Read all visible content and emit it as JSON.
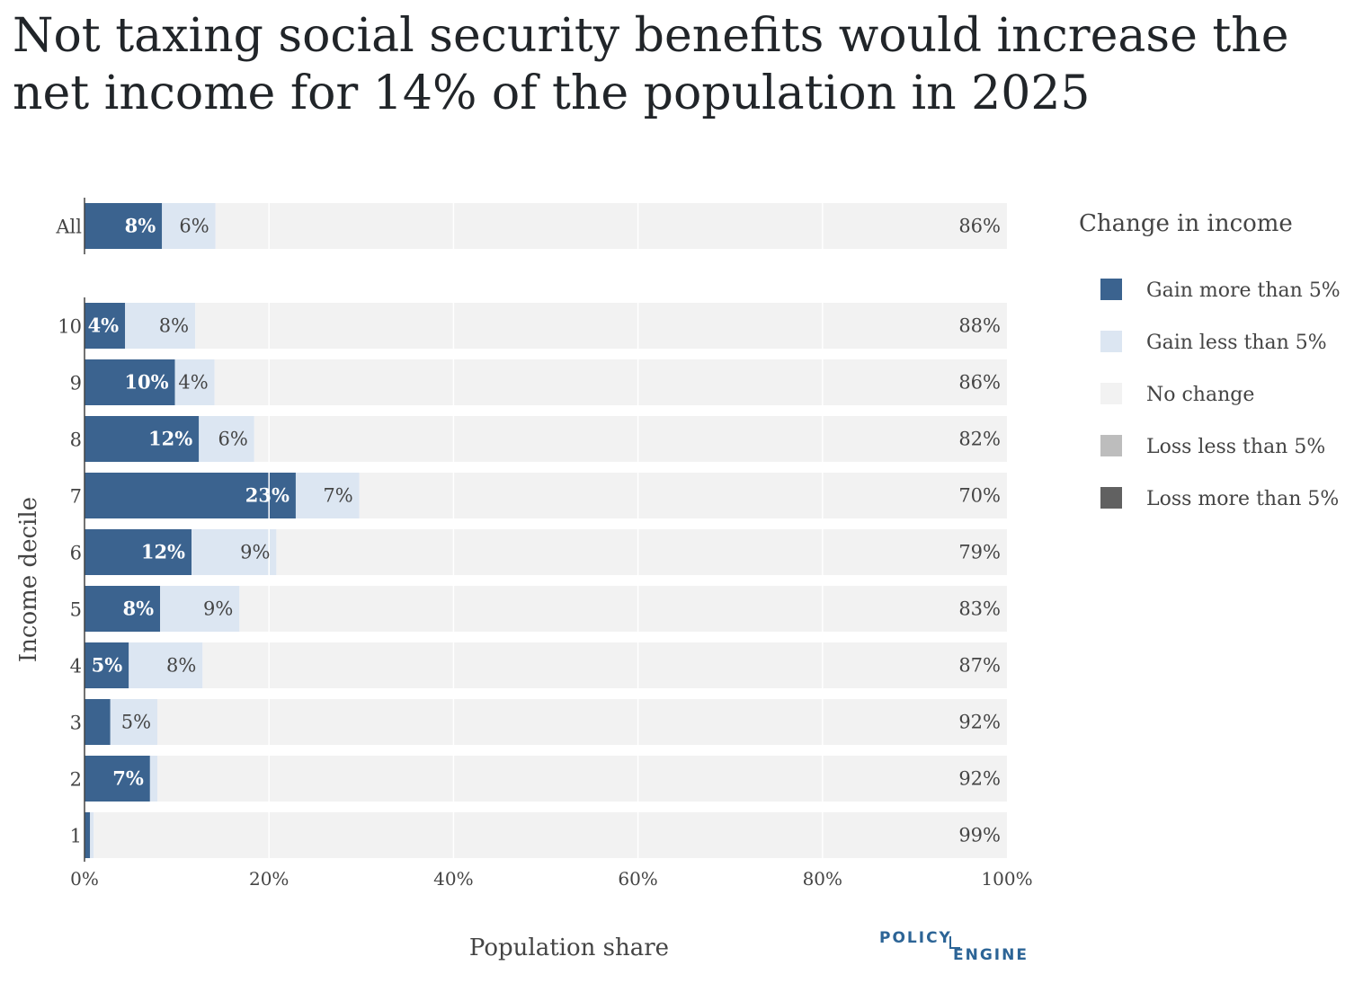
{
  "title": "Not taxing social security benefits would increase the net income for 14% of the population in 2025",
  "logo": {
    "top": "POLICY",
    "bottom": "ENGINE"
  },
  "chart_data": {
    "type": "bar",
    "orientation": "horizontal",
    "stacked": true,
    "categories_all": [
      "All"
    ],
    "categories": [
      "10",
      "9",
      "8",
      "7",
      "6",
      "5",
      "4",
      "3",
      "2",
      "1"
    ],
    "xlabel": "Population share",
    "ylabel": "Income decile",
    "xlim": [
      0,
      100
    ],
    "xticks": [
      "0%",
      "20%",
      "40%",
      "60%",
      "80%",
      "100%"
    ],
    "legend_title": "Change in income",
    "legend_position": "right",
    "series": [
      {
        "name": "Gain more than 5%",
        "color": "#3b638f",
        "all": 8.4,
        "values": [
          4.4,
          9.8,
          12.4,
          22.9,
          11.6,
          8.2,
          4.8,
          2.8,
          7.1,
          0.6
        ],
        "all_label": "8%",
        "labels": [
          "4%",
          "10%",
          "12%",
          "23%",
          "12%",
          "8%",
          "5%",
          "",
          "7%",
          ""
        ]
      },
      {
        "name": "Gain less than 5%",
        "color": "#dce6f2",
        "all": 5.8,
        "values": [
          7.6,
          4.3,
          6.0,
          6.9,
          9.2,
          8.6,
          8.0,
          5.1,
          0.8,
          0.4
        ],
        "all_label": "6%",
        "labels": [
          "8%",
          "4%",
          "6%",
          "7%",
          "9%",
          "9%",
          "8%",
          "5%",
          "",
          ""
        ]
      },
      {
        "name": "No change",
        "color": "#f2f2f2",
        "all": 85.8,
        "values": [
          88.0,
          85.9,
          81.6,
          70.2,
          79.2,
          83.2,
          87.2,
          92.1,
          92.1,
          99.0
        ],
        "all_label": "86%",
        "labels": [
          "88%",
          "86%",
          "82%",
          "70%",
          "79%",
          "83%",
          "87%",
          "92%",
          "92%",
          "99%"
        ]
      },
      {
        "name": "Loss less than 5%",
        "color": "#bdbdbd",
        "all": 0,
        "values": [
          0,
          0,
          0,
          0,
          0,
          0,
          0,
          0,
          0,
          0
        ],
        "all_label": "",
        "labels": [
          "",
          "",
          "",
          "",
          "",
          "",
          "",
          "",
          "",
          ""
        ]
      },
      {
        "name": "Loss more than 5%",
        "color": "#616161",
        "all": 0,
        "values": [
          0,
          0,
          0,
          0,
          0,
          0,
          0,
          0,
          0,
          0
        ],
        "all_label": "",
        "labels": [
          "",
          "",
          "",
          "",
          "",
          "",
          "",
          "",
          "",
          ""
        ]
      }
    ],
    "label_colors": {
      "dark": "#ffffff",
      "light": "#444444"
    },
    "grid": true
  }
}
